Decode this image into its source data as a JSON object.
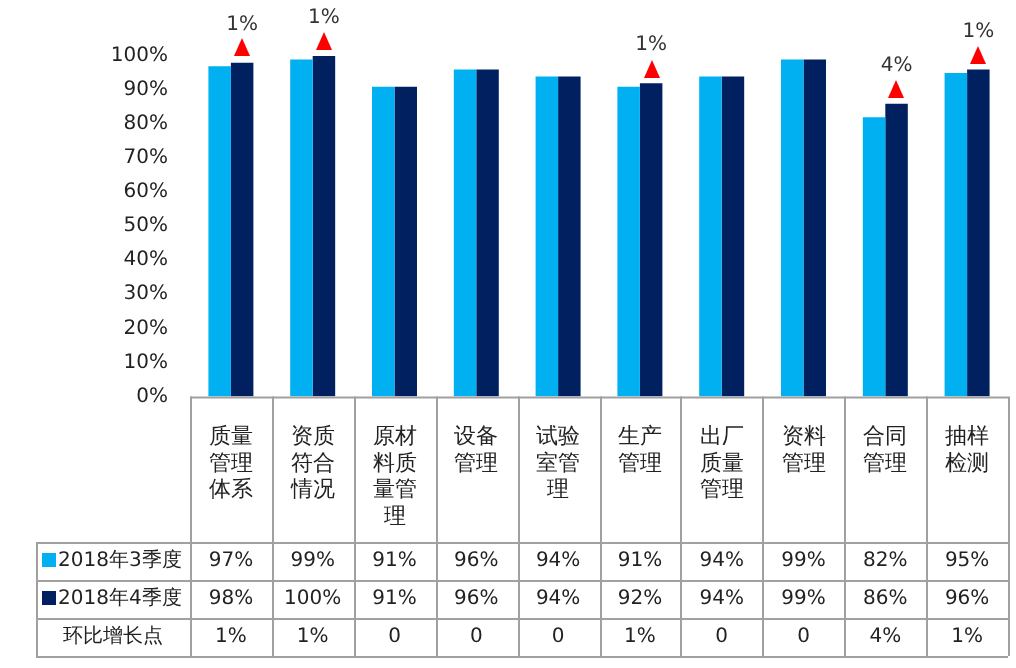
{
  "chart_data": {
    "type": "bar",
    "categories": [
      "质量管理体系",
      "资质符合情况",
      "原材料质量管理",
      "设备管理",
      "试验室管理",
      "生产管理",
      "出厂质量管理",
      "资料管理",
      "合同管理",
      "抽样检测"
    ],
    "series": [
      {
        "name": "2018年3季度",
        "color": "#00b0f0",
        "values": [
          97,
          99,
          91,
          96,
          94,
          91,
          94,
          99,
          82,
          95
        ],
        "value_labels": [
          "97%",
          "99%",
          "91%",
          "96%",
          "94%",
          "91%",
          "94%",
          "99%",
          "82%",
          "95%"
        ]
      },
      {
        "name": "2018年4季度",
        "color": "#002060",
        "values": [
          98,
          100,
          91,
          96,
          94,
          92,
          94,
          99,
          86,
          96
        ],
        "value_labels": [
          "98%",
          "100%",
          "91%",
          "96%",
          "94%",
          "92%",
          "94%",
          "99%",
          "86%",
          "96%"
        ]
      }
    ],
    "ylim": [
      0,
      100
    ],
    "yticks": [
      {
        "value": 0,
        "label": "0%"
      },
      {
        "value": 10,
        "label": "10%"
      },
      {
        "value": 20,
        "label": "20%"
      },
      {
        "value": 30,
        "label": "30%"
      },
      {
        "value": 40,
        "label": "40%"
      },
      {
        "value": 50,
        "label": "50%"
      },
      {
        "value": 60,
        "label": "60%"
      },
      {
        "value": 70,
        "label": "70%"
      },
      {
        "value": 80,
        "label": "80%"
      },
      {
        "value": 90,
        "label": "90%"
      },
      {
        "value": 100,
        "label": "100%"
      }
    ],
    "grid": false,
    "legend": "bottom",
    "annotations": [
      {
        "text": "1%",
        "x": "质量管理体系",
        "y": 98
      },
      {
        "text": "1%",
        "x": "资质符合情况",
        "y": 100
      },
      {
        "text": "1%",
        "x": "生产管理",
        "y": 92
      },
      {
        "text": "4%",
        "x": "合同管理",
        "y": 86
      },
      {
        "text": "1%",
        "x": "抽样检测",
        "y": 96
      },
      "环比增长点",
      "1%",
      "1%",
      "0",
      "0",
      "0",
      "1%",
      "0",
      "0",
      "4%",
      "1%"
    ]
  }
}
